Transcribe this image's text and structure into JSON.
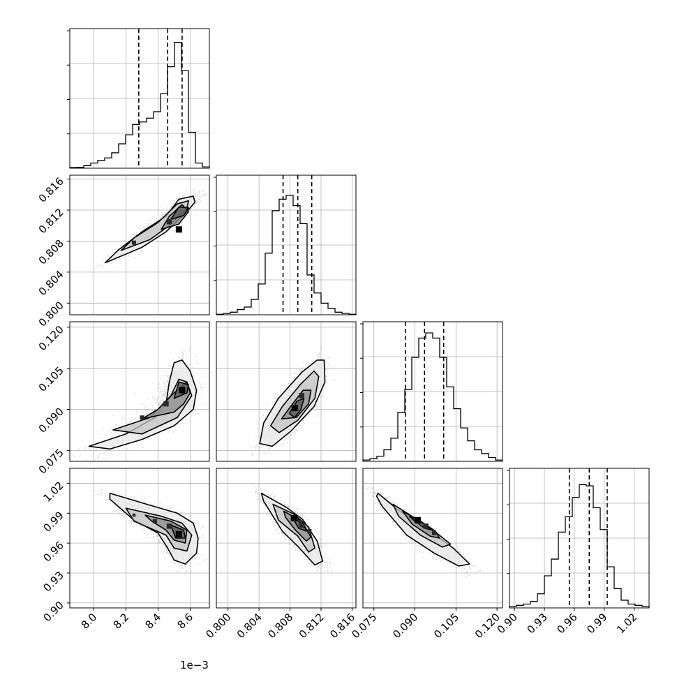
{
  "chart_data": {
    "type": "corner",
    "n_params": 4,
    "offset_label": "1e−3",
    "grid": true,
    "colors": {
      "line": "#000000",
      "grid": "#b0b0b0",
      "scatter": "#bdbdbd",
      "fill": "#d0d0d0",
      "frame": "#000000"
    },
    "axes": [
      {
        "range": [
          7.85,
          8.72
        ],
        "ticks": [
          8.0,
          8.2,
          8.4,
          8.6
        ],
        "tick_labels": [
          "8.0",
          "8.2",
          "8.4",
          "8.6"
        ]
      },
      {
        "range": [
          0.7985,
          0.8165
        ],
        "ticks": [
          0.8,
          0.804,
          0.808,
          0.812,
          0.816
        ],
        "tick_labels": [
          "0.800",
          "0.804",
          "0.808",
          "0.812",
          "0.816"
        ]
      },
      {
        "range": [
          0.071,
          0.122
        ],
        "ticks": [
          0.075,
          0.09,
          0.105,
          0.12
        ],
        "tick_labels": [
          "0.075",
          "0.090",
          "0.105",
          "0.120"
        ]
      },
      {
        "range": [
          0.895,
          1.035
        ],
        "ticks": [
          0.9,
          0.93,
          0.96,
          0.99,
          1.02
        ],
        "tick_labels": [
          "0.90",
          "0.93",
          "0.96",
          "0.99",
          "1.02"
        ]
      }
    ],
    "quantiles": [
      [
        8.28,
        8.46,
        8.55
      ],
      [
        0.8071,
        0.809,
        0.8108
      ],
      [
        0.0865,
        0.0935,
        0.1005
      ],
      [
        0.955,
        0.975,
        0.993
      ]
    ],
    "histograms": [
      {
        "counts": [
          0.005,
          0.007,
          0.02,
          0.04,
          0.06,
          0.08,
          0.12,
          0.19,
          0.26,
          0.34,
          0.36,
          0.39,
          0.44,
          0.58,
          0.79,
          0.98,
          0.76,
          0.28,
          0.04,
          0.01
        ]
      },
      {
        "counts": [
          0.004,
          0.01,
          0.02,
          0.04,
          0.06,
          0.12,
          0.24,
          0.48,
          0.81,
          0.9,
          0.93,
          0.85,
          0.71,
          0.31,
          0.17,
          0.09,
          0.05,
          0.02,
          0.01,
          0.004
        ]
      },
      {
        "counts": [
          0.01,
          0.02,
          0.04,
          0.09,
          0.18,
          0.38,
          0.56,
          0.81,
          0.96,
          1.0,
          0.96,
          0.81,
          0.58,
          0.41,
          0.26,
          0.16,
          0.09,
          0.06,
          0.03,
          0.01
        ]
      },
      {
        "counts": [
          0.01,
          0.02,
          0.03,
          0.05,
          0.11,
          0.25,
          0.38,
          0.59,
          0.71,
          0.86,
          0.96,
          0.95,
          0.78,
          0.61,
          0.32,
          0.15,
          0.06,
          0.03,
          0.02,
          0.01
        ]
      }
    ],
    "pairs": [
      {
        "row": 1,
        "col": 0,
        "modes": [
          {
            "x": 8.53,
            "y": 0.8095
          },
          {
            "x": 8.47,
            "y": 0.8105
          },
          {
            "x": 8.25,
            "y": 0.8078
          }
        ],
        "contours": [
          [
            [
              8.07,
              0.8052
            ],
            [
              8.3,
              0.8072
            ],
            [
              8.45,
              0.8092
            ],
            [
              8.58,
              0.8118
            ],
            [
              8.63,
              0.813
            ],
            [
              8.62,
              0.8138
            ],
            [
              8.53,
              0.8134
            ],
            [
              8.45,
              0.8112
            ],
            [
              8.3,
              0.8092
            ],
            [
              8.15,
              0.8068
            ]
          ],
          [
            [
              8.17,
              0.8068
            ],
            [
              8.35,
              0.8082
            ],
            [
              8.47,
              0.81
            ],
            [
              8.58,
              0.8122
            ],
            [
              8.59,
              0.8132
            ],
            [
              8.52,
              0.8128
            ],
            [
              8.4,
              0.8104
            ],
            [
              8.25,
              0.8084
            ]
          ],
          [
            [
              8.42,
              0.8095
            ],
            [
              8.53,
              0.8102
            ],
            [
              8.59,
              0.8118
            ],
            [
              8.55,
              0.8127
            ],
            [
              8.47,
              0.8112
            ]
          ],
          [
            [
              8.48,
              0.8108
            ],
            [
              8.56,
              0.8113
            ],
            [
              8.59,
              0.8123
            ],
            [
              8.53,
              0.8124
            ]
          ]
        ]
      },
      {
        "row": 2,
        "col": 0,
        "modes": [
          {
            "x": 8.55,
            "y": 0.097
          },
          {
            "x": 8.45,
            "y": 0.092
          },
          {
            "x": 8.3,
            "y": 0.087
          }
        ],
        "contours": [
          [
            [
              7.97,
              0.0765
            ],
            [
              8.2,
              0.081
            ],
            [
              8.38,
              0.087
            ],
            [
              8.45,
              0.092
            ],
            [
              8.47,
              0.1
            ],
            [
              8.5,
              0.107
            ],
            [
              8.55,
              0.108
            ],
            [
              8.6,
              0.104
            ],
            [
              8.64,
              0.097
            ],
            [
              8.62,
              0.09
            ],
            [
              8.5,
              0.084
            ],
            [
              8.3,
              0.079
            ],
            [
              8.1,
              0.0755
            ]
          ],
          [
            [
              8.12,
              0.0825
            ],
            [
              8.35,
              0.087
            ],
            [
              8.48,
              0.095
            ],
            [
              8.53,
              0.101
            ],
            [
              8.58,
              0.1
            ],
            [
              8.61,
              0.095
            ],
            [
              8.52,
              0.087
            ],
            [
              8.3,
              0.081
            ]
          ],
          [
            [
              8.3,
              0.0865
            ],
            [
              8.5,
              0.089
            ],
            [
              8.56,
              0.092
            ],
            [
              8.6,
              0.096
            ],
            [
              8.58,
              0.1
            ],
            [
              8.5,
              0.096
            ],
            [
              8.4,
              0.09
            ]
          ],
          [
            [
              8.5,
              0.094
            ],
            [
              8.58,
              0.096
            ],
            [
              8.59,
              0.099
            ],
            [
              8.53,
              0.1
            ]
          ]
        ]
      },
      {
        "row": 2,
        "col": 1,
        "modes": [
          {
            "x": 0.8086,
            "y": 0.0905
          },
          {
            "x": 0.8095,
            "y": 0.095
          }
        ],
        "contours": [
          [
            [
              0.8041,
              0.0775
            ],
            [
              0.8046,
              0.085
            ],
            [
              0.8065,
              0.094
            ],
            [
              0.8095,
              0.1035
            ],
            [
              0.8115,
              0.108
            ],
            [
              0.8124,
              0.108
            ],
            [
              0.8125,
              0.1
            ],
            [
              0.8111,
              0.091
            ],
            [
              0.8081,
              0.082
            ],
            [
              0.8057,
              0.0765
            ]
          ],
          [
            [
              0.8055,
              0.084
            ],
            [
              0.807,
              0.091
            ],
            [
              0.8093,
              0.099
            ],
            [
              0.8111,
              0.104
            ],
            [
              0.8117,
              0.102
            ],
            [
              0.8112,
              0.094
            ],
            [
              0.809,
              0.086
            ],
            [
              0.8066,
              0.0815
            ]
          ],
          [
            [
              0.8069,
              0.0865
            ],
            [
              0.8082,
              0.0915
            ],
            [
              0.8097,
              0.097
            ],
            [
              0.8107,
              0.097
            ],
            [
              0.8104,
              0.092
            ],
            [
              0.8088,
              0.087
            ]
          ],
          [
            [
              0.8079,
              0.0885
            ],
            [
              0.8089,
              0.093
            ],
            [
              0.8098,
              0.094
            ],
            [
              0.8094,
              0.09
            ],
            [
              0.8086,
              0.087
            ]
          ]
        ]
      },
      {
        "row": 3,
        "col": 0,
        "modes": [
          {
            "x": 8.53,
            "y": 0.969
          },
          {
            "x": 8.47,
            "y": 0.977
          },
          {
            "x": 8.38,
            "y": 0.982
          },
          {
            "x": 8.25,
            "y": 0.988
          }
        ],
        "contours": [
          [
            [
              8.1,
              1.01
            ],
            [
              8.35,
              0.998
            ],
            [
              8.52,
              0.99
            ],
            [
              8.62,
              0.98
            ],
            [
              8.65,
              0.965
            ],
            [
              8.64,
              0.95
            ],
            [
              8.57,
              0.939
            ],
            [
              8.5,
              0.943
            ],
            [
              8.46,
              0.955
            ],
            [
              8.4,
              0.97
            ],
            [
              8.25,
              0.983
            ],
            [
              8.1,
              1.004
            ]
          ],
          [
            [
              8.2,
              0.995
            ],
            [
              8.42,
              0.987
            ],
            [
              8.55,
              0.98
            ],
            [
              8.61,
              0.968
            ],
            [
              8.58,
              0.952
            ],
            [
              8.5,
              0.955
            ],
            [
              8.45,
              0.968
            ],
            [
              8.25,
              0.982
            ]
          ],
          [
            [
              8.32,
              0.988
            ],
            [
              8.48,
              0.982
            ],
            [
              8.58,
              0.973
            ],
            [
              8.57,
              0.96
            ],
            [
              8.5,
              0.963
            ],
            [
              8.45,
              0.973
            ],
            [
              8.36,
              0.982
            ]
          ],
          [
            [
              8.48,
              0.978
            ],
            [
              8.56,
              0.973
            ],
            [
              8.57,
              0.965
            ],
            [
              8.51,
              0.965
            ]
          ]
        ]
      },
      {
        "row": 3,
        "col": 1,
        "modes": [
          {
            "x": 0.8085,
            "y": 0.985
          },
          {
            "x": 0.8095,
            "y": 0.978
          },
          {
            "x": 0.8105,
            "y": 0.972
          }
        ],
        "contours": [
          [
            [
              0.8043,
              1.01
            ],
            [
              0.8075,
              0.996
            ],
            [
              0.8096,
              0.984
            ],
            [
              0.8115,
              0.962
            ],
            [
              0.8122,
              0.942
            ],
            [
              0.8112,
              0.938
            ],
            [
              0.8091,
              0.956
            ],
            [
              0.807,
              0.972
            ],
            [
              0.8046,
              1.002
            ]
          ],
          [
            [
              0.8058,
              0.999
            ],
            [
              0.8085,
              0.989
            ],
            [
              0.8104,
              0.976
            ],
            [
              0.8112,
              0.955
            ],
            [
              0.8104,
              0.951
            ],
            [
              0.809,
              0.967
            ],
            [
              0.8065,
              0.983
            ]
          ],
          [
            [
              0.8072,
              0.992
            ],
            [
              0.8095,
              0.982
            ],
            [
              0.8107,
              0.966
            ],
            [
              0.8101,
              0.962
            ],
            [
              0.8087,
              0.973
            ],
            [
              0.8074,
              0.986
            ]
          ],
          [
            [
              0.8082,
              0.987
            ],
            [
              0.8098,
              0.978
            ],
            [
              0.8101,
              0.972
            ],
            [
              0.8091,
              0.975
            ]
          ]
        ]
      },
      {
        "row": 3,
        "col": 2,
        "modes": [
          {
            "x": 0.091,
            "y": 0.983
          },
          {
            "x": 0.094,
            "y": 0.977
          },
          {
            "x": 0.097,
            "y": 0.97
          }
        ],
        "contours": [
          [
            [
              0.0765,
              1.01
            ],
            [
              0.084,
              0.993
            ],
            [
              0.095,
              0.973
            ],
            [
              0.104,
              0.955
            ],
            [
              0.11,
              0.939
            ],
            [
              0.106,
              0.937
            ],
            [
              0.097,
              0.95
            ],
            [
              0.087,
              0.968
            ],
            [
              0.078,
              0.997
            ],
            [
              0.076,
              1.007
            ]
          ],
          [
            [
              0.082,
              0.999
            ],
            [
              0.09,
              0.985
            ],
            [
              0.098,
              0.97
            ],
            [
              0.103,
              0.959
            ],
            [
              0.1,
              0.956
            ],
            [
              0.092,
              0.968
            ],
            [
              0.084,
              0.987
            ]
          ],
          [
            [
              0.0855,
              0.992
            ],
            [
              0.092,
              0.982
            ],
            [
              0.0975,
              0.972
            ],
            [
              0.099,
              0.965
            ],
            [
              0.0955,
              0.967
            ],
            [
              0.089,
              0.979
            ]
          ],
          [
            [
              0.088,
              0.987
            ],
            [
              0.093,
              0.98
            ],
            [
              0.0965,
              0.973
            ],
            [
              0.0935,
              0.975
            ],
            [
              0.0895,
              0.983
            ]
          ]
        ]
      }
    ]
  }
}
